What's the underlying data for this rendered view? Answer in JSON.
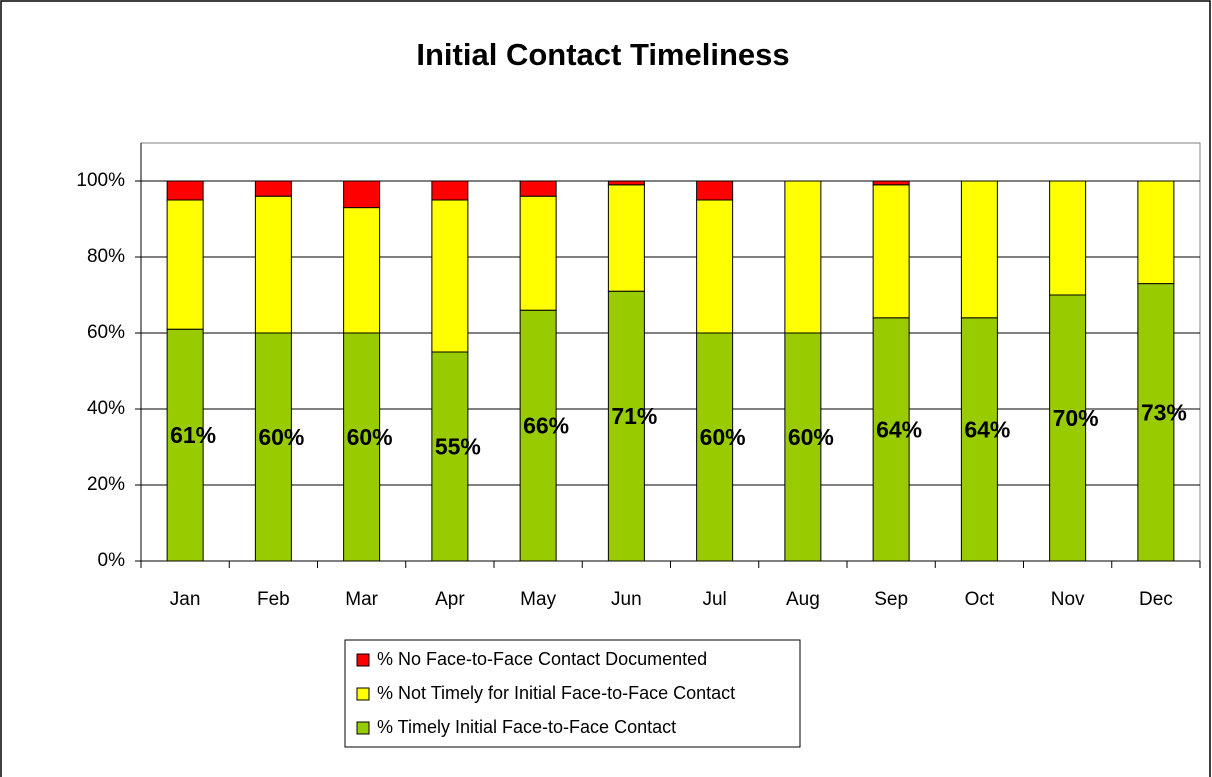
{
  "chart_data": {
    "type": "stacked_bar",
    "title": "Initial Contact Timeliness",
    "categories": [
      "Jan",
      "Feb",
      "Mar",
      "Apr",
      "May",
      "Jun",
      "Jul",
      "Aug",
      "Sep",
      "Oct",
      "Nov",
      "Dec"
    ],
    "series": [
      {
        "name": "% Timely Initial Face-to-Face Contact",
        "color": "#99cc00",
        "values": [
          61,
          60,
          60,
          55,
          66,
          71,
          60,
          60,
          64,
          64,
          70,
          73
        ],
        "value_labels": [
          "61%",
          "60%",
          "60%",
          "55%",
          "66%",
          "71%",
          "60%",
          "60%",
          "64%",
          "64%",
          "70%",
          "73%"
        ]
      },
      {
        "name": "% Not Timely for Initial Face-to-Face Contact",
        "color": "#ffff00",
        "values": [
          34,
          36,
          33,
          40,
          30,
          28,
          35,
          40,
          35,
          36,
          30,
          27
        ]
      },
      {
        "name": "% No Face-to-Face Contact Documented",
        "color": "#ff0000",
        "values": [
          5,
          4,
          7,
          5,
          4,
          1,
          5,
          0,
          1,
          0,
          0,
          0
        ]
      }
    ],
    "ylim": [
      0,
      110
    ],
    "yticks": [
      {
        "value": 0,
        "label": "0%"
      },
      {
        "value": 20,
        "label": "20%"
      },
      {
        "value": 40,
        "label": "40%"
      },
      {
        "value": 60,
        "label": "60%"
      },
      {
        "value": 80,
        "label": "80%"
      },
      {
        "value": 100,
        "label": "100%"
      }
    ],
    "grid": true
  }
}
